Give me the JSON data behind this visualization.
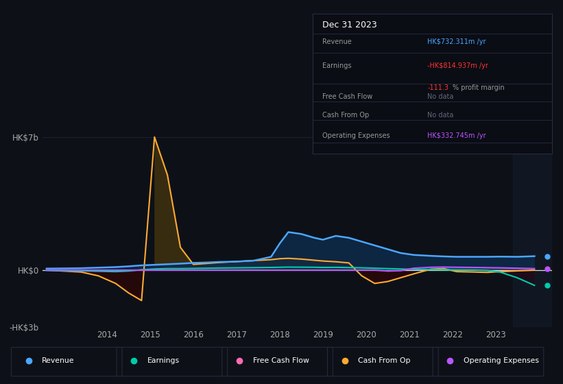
{
  "bg_color": "#0d1117",
  "ylim_min": -3000000000,
  "ylim_max": 7500000000,
  "xlim_min": 2012.5,
  "xlim_max": 2024.3,
  "xticks": [
    2014,
    2015,
    2016,
    2017,
    2018,
    2019,
    2020,
    2021,
    2022,
    2023
  ],
  "ytick_vals": [
    -3000000000,
    0,
    7000000000
  ],
  "ytick_labels": [
    "-HK$3b",
    "HK$0",
    "HK$7b"
  ],
  "years": [
    2012.6,
    2013.0,
    2013.4,
    2013.8,
    2014.2,
    2014.5,
    2014.8,
    2015.1,
    2015.4,
    2015.7,
    2016.0,
    2016.3,
    2016.6,
    2017.0,
    2017.4,
    2017.8,
    2018.0,
    2018.2,
    2018.5,
    2018.8,
    2019.0,
    2019.3,
    2019.6,
    2019.9,
    2020.2,
    2020.5,
    2020.8,
    2021.1,
    2021.5,
    2021.8,
    2022.1,
    2022.5,
    2022.8,
    2023.1,
    2023.5,
    2023.9
  ],
  "revenue": [
    80000000.0,
    90000000.0,
    100000000.0,
    130000000.0,
    160000000.0,
    200000000.0,
    250000000.0,
    280000000.0,
    310000000.0,
    340000000.0,
    380000000.0,
    400000000.0,
    430000000.0,
    450000000.0,
    500000000.0,
    700000000.0,
    1400000000.0,
    2000000000.0,
    1900000000.0,
    1700000000.0,
    1600000000.0,
    1800000000.0,
    1700000000.0,
    1500000000.0,
    1300000000.0,
    1100000000.0,
    900000000.0,
    800000000.0,
    750000000.0,
    720000000.0,
    700000000.0,
    700000000.0,
    700000000.0,
    710000000.0,
    700000000.0,
    732000000.0
  ],
  "earnings": [
    -20000000.0,
    -30000000.0,
    -40000000.0,
    -60000000.0,
    -80000000.0,
    -50000000.0,
    20000000.0,
    60000000.0,
    80000000.0,
    80000000.0,
    90000000.0,
    100000000.0,
    110000000.0,
    120000000.0,
    130000000.0,
    140000000.0,
    150000000.0,
    160000000.0,
    155000000.0,
    150000000.0,
    140000000.0,
    145000000.0,
    135000000.0,
    120000000.0,
    100000000.0,
    80000000.0,
    60000000.0,
    40000000.0,
    30000000.0,
    20000000.0,
    10000000.0,
    5000000.0,
    -20000000.0,
    -100000000.0,
    -400000000.0,
    -800000000.0
  ],
  "cash_from_op": [
    0,
    -50000000.0,
    -100000000.0,
    -300000000.0,
    -700000000.0,
    -1200000000.0,
    -1600000000.0,
    7000000000.0,
    5000000000.0,
    1200000000.0,
    300000000.0,
    350000000.0,
    400000000.0,
    450000000.0,
    500000000.0,
    550000000.0,
    600000000.0,
    620000000.0,
    580000000.0,
    520000000.0,
    480000000.0,
    440000000.0,
    380000000.0,
    -300000000.0,
    -700000000.0,
    -600000000.0,
    -400000000.0,
    -200000000.0,
    50000000.0,
    80000000.0,
    -80000000.0,
    -100000000.0,
    -120000000.0,
    -80000000.0,
    -40000000.0,
    0
  ],
  "op_expenses": [
    0,
    0,
    0,
    0,
    0,
    0,
    0,
    0,
    0,
    0,
    0,
    0,
    0,
    0,
    0,
    0,
    0,
    0,
    0,
    0,
    0,
    0,
    0,
    0,
    0,
    -50000000.0,
    -30000000.0,
    100000000.0,
    150000000.0,
    160000000.0,
    150000000.0,
    140000000.0,
    130000000.0,
    120000000.0,
    100000000.0,
    80000000.0
  ],
  "revenue_color": "#4da6ff",
  "earnings_color": "#00ccaa",
  "free_cash_color": "#ff69b4",
  "cash_op_color": "#ffaa33",
  "op_exp_color": "#bb55ff",
  "text_color": "#aaaaaa",
  "grid_color": "#1e2535",
  "zero_line_color": "#dddddd",
  "shade_right_color": "#151e2e",
  "table_bg": "#0a0d14",
  "table_border": "#2a2a44",
  "shade_start": 2023.4
}
